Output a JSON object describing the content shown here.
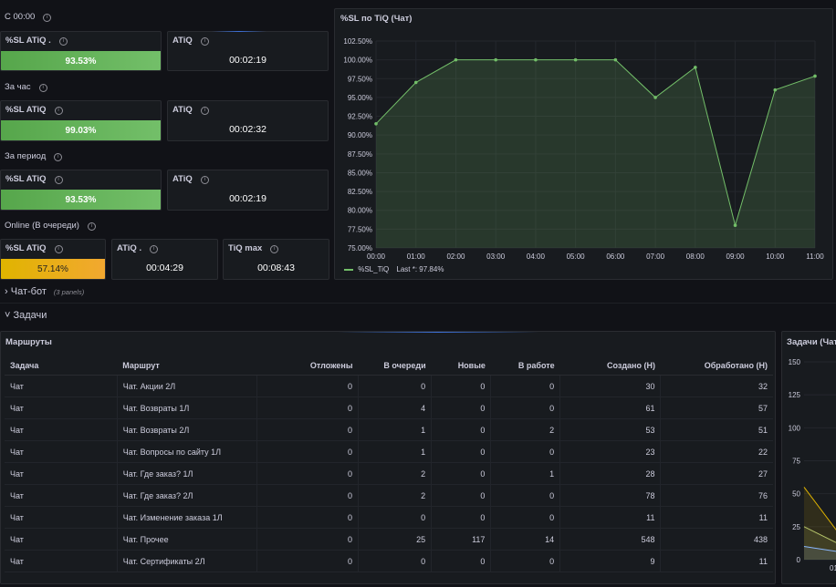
{
  "sections": {
    "since_midnight": "С 00:00",
    "hour": "За час",
    "period": "За период",
    "online": "Online (В очереди)"
  },
  "panels": {
    "sl_since": {
      "title": "%SL ATiQ .",
      "value": "93.53%"
    },
    "atiq_since": {
      "title": "ATiQ",
      "value": "00:02:19"
    },
    "sl_hour": {
      "title": "%SL ATiQ",
      "value": "99.03%"
    },
    "atiq_hour": {
      "title": "ATiQ",
      "value": "00:02:32"
    },
    "sl_period": {
      "title": "%SL ATiQ",
      "value": "93.53%"
    },
    "atiq_period": {
      "title": "ATiQ",
      "value": "00:02:19"
    },
    "sl_online": {
      "title": "%SL ATiQ",
      "value": "57.14%"
    },
    "atiq_online": {
      "title": "ATiQ .",
      "value": "00:04:29"
    },
    "tiq_max": {
      "title": "TiQ max",
      "value": "00:08:43"
    }
  },
  "chart_panel_title": "%SL по TiQ (Чат)",
  "chart_legend": {
    "series": "%SL_TiQ",
    "last": "Last *: 97.84%"
  },
  "chart_data": [
    {
      "type": "area",
      "title": "%SL по TiQ (Чат)",
      "x": [
        "00:00",
        "01:00",
        "02:00",
        "03:00",
        "04:00",
        "05:00",
        "06:00",
        "07:00",
        "08:00",
        "09:00",
        "10:00",
        "11:00"
      ],
      "series": [
        {
          "name": "%SL_TiQ",
          "values": [
            91.5,
            97.0,
            100.0,
            100.0,
            100.0,
            100.0,
            100.0,
            95.0,
            99.0,
            78.0,
            96.0,
            97.84
          ]
        }
      ],
      "ylim": [
        75,
        102.5
      ],
      "yticks": [
        "102.50%",
        "100.00%",
        "97.50%",
        "95.00%",
        "92.50%",
        "90.00%",
        "87.50%",
        "85.00%",
        "82.50%",
        "80.00%",
        "77.50%",
        "75.00%"
      ],
      "grid": true,
      "legend": "bottom-left",
      "color": "#73bf69"
    },
    {
      "type": "area",
      "title": "Задачи (Чат",
      "yticks": [
        "150",
        "125",
        "100",
        "75",
        "50",
        "25",
        "0"
      ],
      "ylim": [
        0,
        150
      ],
      "x_partial": "01",
      "series": [
        {
          "values": [
            55,
            20
          ],
          "color": "#e0b400"
        },
        {
          "values": [
            25,
            12
          ],
          "color": "#b4c36a"
        },
        {
          "values": [
            10,
            6
          ],
          "color": "#8ab8ff"
        }
      ]
    }
  ],
  "rows": {
    "chatbot": {
      "label": "Чат-бот",
      "sub": "(3 panels)"
    },
    "tasks": {
      "label": "Задачи"
    }
  },
  "routes": {
    "title": "Маршруты",
    "columns": [
      "Задача",
      "Маршрут",
      "Отложены",
      "В очереди",
      "Новые",
      "В работе",
      "Создано (Н)",
      "Обработано (Н)"
    ],
    "rows": [
      [
        "Чат",
        "Чат. Акции 2Л",
        "0",
        "0",
        "0",
        "0",
        "30",
        "32"
      ],
      [
        "Чат",
        "Чат. Возвраты 1Л",
        "0",
        "4",
        "0",
        "0",
        "61",
        "57"
      ],
      [
        "Чат",
        "Чат. Возвраты 2Л",
        "0",
        "1",
        "0",
        "2",
        "53",
        "51"
      ],
      [
        "Чат",
        "Чат. Вопросы по сайту 1Л",
        "0",
        "1",
        "0",
        "0",
        "23",
        "22"
      ],
      [
        "Чат",
        "Чат. Где заказ? 1Л",
        "0",
        "2",
        "0",
        "1",
        "28",
        "27"
      ],
      [
        "Чат",
        "Чат. Где заказ? 2Л",
        "0",
        "2",
        "0",
        "0",
        "78",
        "76"
      ],
      [
        "Чат",
        "Чат. Изменение заказа 1Л",
        "0",
        "0",
        "0",
        "0",
        "11",
        "11"
      ],
      [
        "Чат",
        "Чат. Прочее",
        "0",
        "25",
        "117",
        "14",
        "548",
        "438"
      ],
      [
        "Чат",
        "Чат. Сертификаты 2Л",
        "0",
        "0",
        "0",
        "0",
        "9",
        "11"
      ]
    ]
  },
  "tasks_panel_title": "Задачи (Чат"
}
